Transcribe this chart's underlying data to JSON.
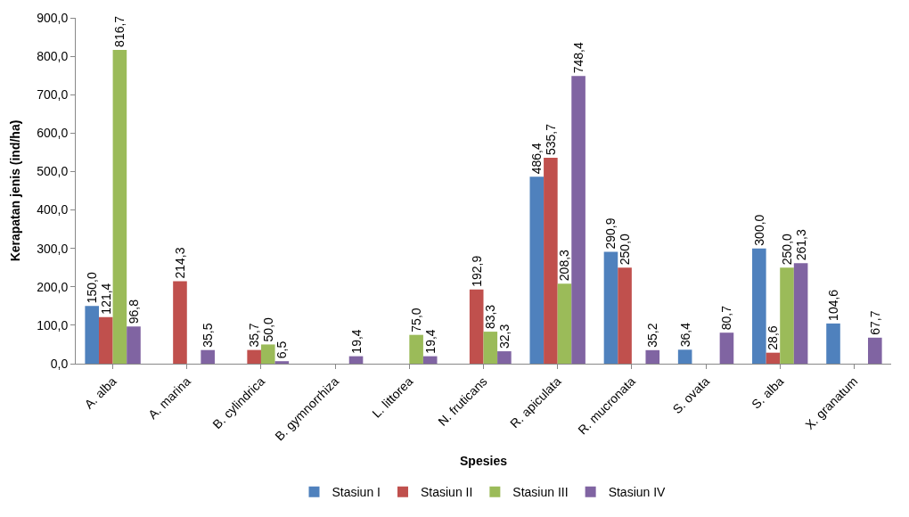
{
  "chart_data": {
    "type": "bar",
    "xlabel": "Spesies",
    "ylabel": "Kerapatan jenis (ind/ha)",
    "categories": [
      "A. alba",
      "A. marina",
      "B. cylindrica",
      "B. gymnorrhiza",
      "L. littorea",
      "N. fruticans",
      "R. apiculata",
      "R. mucronata",
      "S. ovata",
      "S. alba",
      "X. granatum"
    ],
    "series": [
      {
        "name": "Stasiun I",
        "color": "#4f81bd",
        "values": [
          150.0,
          null,
          null,
          null,
          null,
          null,
          486.4,
          290.9,
          36.4,
          300.0,
          104.6
        ],
        "value_labels": [
          "150,0",
          null,
          null,
          null,
          null,
          null,
          "486,4",
          "290,9",
          "36,4",
          "300,0",
          "104,6"
        ]
      },
      {
        "name": "Stasiun II",
        "color": "#c0504d",
        "values": [
          121.4,
          214.3,
          35.7,
          null,
          null,
          192.9,
          535.7,
          250.0,
          null,
          28.6,
          null
        ],
        "value_labels": [
          "121,4",
          "214,3",
          "35,7",
          null,
          null,
          "192,9",
          "535,7",
          "250,0",
          null,
          "28,6",
          null
        ]
      },
      {
        "name": "Stasiun III",
        "color": "#9bbb59",
        "values": [
          816.7,
          null,
          50.0,
          null,
          75.0,
          83.3,
          208.3,
          null,
          null,
          250.0,
          null
        ],
        "value_labels": [
          "816,7",
          null,
          "50,0",
          null,
          "75,0",
          "83,3",
          "208,3",
          null,
          null,
          "250,0",
          null
        ]
      },
      {
        "name": "Stasiun IV",
        "color": "#8064a2",
        "values": [
          96.8,
          35.5,
          6.5,
          19.4,
          19.4,
          32.3,
          748.4,
          35.2,
          80.7,
          261.3,
          67.7
        ],
        "value_labels": [
          "96,8",
          "35,5",
          "6,5",
          "19,4",
          "19,4",
          "32,3",
          "748,4",
          "35,2",
          "80,7",
          "261,3",
          "67,7"
        ]
      }
    ],
    "ylim": [
      0,
      900
    ],
    "yticks": [
      {
        "value": 0,
        "label": "0,0"
      },
      {
        "value": 100,
        "label": "100,0"
      },
      {
        "value": 200,
        "label": "200,0"
      },
      {
        "value": 300,
        "label": "300,0"
      },
      {
        "value": 400,
        "label": "400,0"
      },
      {
        "value": 500,
        "label": "500,0"
      },
      {
        "value": 600,
        "label": "600,0"
      },
      {
        "value": 700,
        "label": "700,0"
      },
      {
        "value": 800,
        "label": "800,0"
      },
      {
        "value": 900,
        "label": "900,0"
      }
    ],
    "grid": false,
    "legend": "bottom"
  }
}
